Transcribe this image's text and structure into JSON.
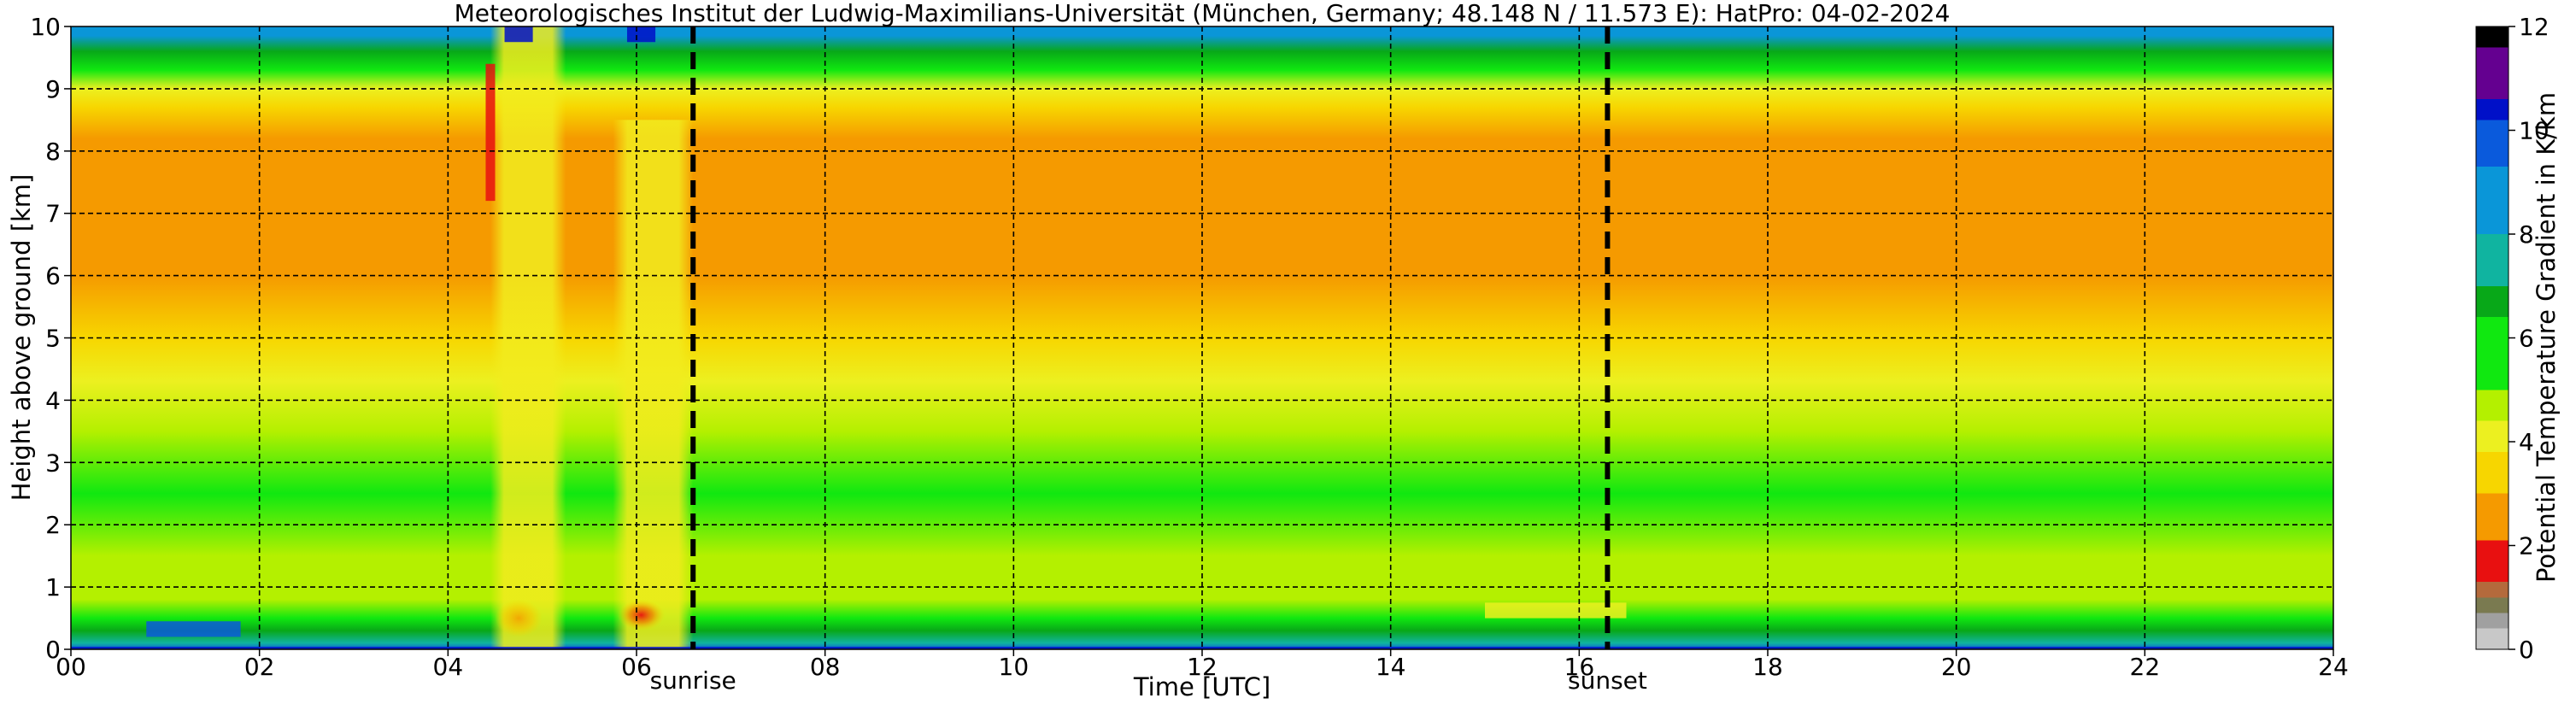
{
  "chart_data": {
    "type": "heatmap",
    "title": "Meteorologisches Institut der Ludwig-Maximilians-Universität (München, Germany; 48.148 N / 11.573 E):    HatPro: 04-02-2024",
    "xlabel": "Time [UTC]",
    "ylabel": "Height above ground [km]",
    "xlim": [
      0,
      24
    ],
    "ylim": [
      0,
      10
    ],
    "x_ticks": [
      0,
      2,
      4,
      6,
      8,
      10,
      12,
      14,
      16,
      18,
      20,
      22,
      24
    ],
    "x_tick_labels": [
      "00",
      "02",
      "04",
      "06",
      "08",
      "10",
      "12",
      "14",
      "16",
      "18",
      "20",
      "22",
      "24"
    ],
    "y_ticks": [
      0,
      1,
      2,
      3,
      4,
      5,
      6,
      7,
      8,
      9,
      10
    ],
    "y_tick_labels": [
      "0",
      "1",
      "2",
      "3",
      "4",
      "5",
      "6",
      "7",
      "8",
      "9",
      "10"
    ],
    "grid": true,
    "grid_style": "dashed",
    "annotations": [
      {
        "label": "sunrise",
        "x": 6.6
      },
      {
        "label": "sunset",
        "x": 16.3
      }
    ],
    "colorbar": {
      "label": "Potential Temperature Gradient in K/km",
      "ticks": [
        0,
        2,
        4,
        6,
        8,
        10,
        12
      ],
      "range": [
        0,
        12
      ],
      "colors": [
        {
          "value": 0.0,
          "color": "#c8c8c8"
        },
        {
          "value": 0.4,
          "color": "#a0a0a0"
        },
        {
          "value": 0.7,
          "color": "#7a7a50"
        },
        {
          "value": 1.0,
          "color": "#b46a3c"
        },
        {
          "value": 1.3,
          "color": "#e81010"
        },
        {
          "value": 2.1,
          "color": "#f59a00"
        },
        {
          "value": 3.0,
          "color": "#f7d600"
        },
        {
          "value": 3.8,
          "color": "#ecf020"
        },
        {
          "value": 4.4,
          "color": "#b4f000"
        },
        {
          "value": 5.0,
          "color": "#10e810"
        },
        {
          "value": 6.4,
          "color": "#08a818"
        },
        {
          "value": 7.0,
          "color": "#10b4a0"
        },
        {
          "value": 8.0,
          "color": "#0a96d8"
        },
        {
          "value": 9.3,
          "color": "#0a5adc"
        },
        {
          "value": 10.2,
          "color": "#0010c8"
        },
        {
          "value": 10.6,
          "color": "#640090"
        },
        {
          "value": 11.6,
          "color": "#000000"
        },
        {
          "value": 12.0,
          "color": "#000000"
        }
      ]
    },
    "background_profile": [
      {
        "height": 0.0,
        "value": 9.6
      },
      {
        "height": 0.1,
        "value": 7.6
      },
      {
        "height": 0.3,
        "value": 6.6
      },
      {
        "height": 0.5,
        "value": 6.0
      },
      {
        "height": 0.8,
        "value": 4.6
      },
      {
        "height": 1.5,
        "value": 4.9
      },
      {
        "height": 2.5,
        "value": 5.0
      },
      {
        "height": 3.5,
        "value": 4.7
      },
      {
        "height": 4.3,
        "value": 4.0
      },
      {
        "height": 5.0,
        "value": 3.6
      },
      {
        "height": 6.0,
        "value": 2.9
      },
      {
        "height": 6.5,
        "value": 2.3
      },
      {
        "height": 7.0,
        "value": 2.7
      },
      {
        "height": 7.5,
        "value": 2.35
      },
      {
        "height": 8.2,
        "value": 2.6
      },
      {
        "height": 8.7,
        "value": 3.4
      },
      {
        "height": 9.0,
        "value": 4.3
      },
      {
        "height": 9.3,
        "value": 5.4
      },
      {
        "height": 9.6,
        "value": 6.4
      },
      {
        "height": 9.85,
        "value": 8.2
      },
      {
        "height": 10.0,
        "value": 8.6
      }
    ],
    "features": [
      {
        "time_start": 4.45,
        "time_end": 5.25,
        "height_start": 0.0,
        "height_end": 10.0,
        "value": 3.6,
        "label": "yellow convective column"
      },
      {
        "time_start": 5.75,
        "time_end": 6.6,
        "height_start": 0.0,
        "height_end": 8.5,
        "value": 3.6,
        "label": "yellow convective column"
      },
      {
        "time_start": 4.5,
        "time_end": 5.0,
        "height_start": 0.2,
        "height_end": 0.8,
        "value": 2.3,
        "label": "orange spot"
      },
      {
        "time_start": 5.8,
        "time_end": 6.3,
        "height_start": 0.3,
        "height_end": 0.8,
        "value": 1.6,
        "label": "red spot"
      },
      {
        "time_start": 4.4,
        "time_end": 4.5,
        "height_start": 7.2,
        "height_end": 9.4,
        "value": 1.5,
        "label": "red streak"
      },
      {
        "time_start": 0.8,
        "time_end": 1.8,
        "height_start": 0.2,
        "height_end": 0.45,
        "value": 9.5,
        "label": "blue patch"
      },
      {
        "time_start": 4.6,
        "time_end": 4.9,
        "height_start": 9.75,
        "height_end": 10.0,
        "value": 10.4,
        "label": "dark blue top"
      },
      {
        "time_start": 5.9,
        "time_end": 6.2,
        "height_start": 9.75,
        "height_end": 10.0,
        "value": 10.4,
        "label": "dark blue top"
      },
      {
        "time_start": 15.0,
        "time_end": 16.5,
        "height_start": 0.5,
        "height_end": 0.75,
        "value": 3.8,
        "label": "yellow near surface"
      },
      {
        "time_start": 0.0,
        "time_end": 24.0,
        "height_start": 0.0,
        "height_end": 0.04,
        "value": 10.3,
        "label": "dark blue surface line"
      }
    ]
  }
}
